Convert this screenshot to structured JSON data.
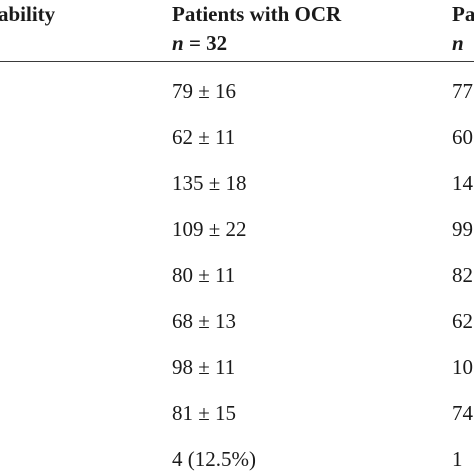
{
  "header": {
    "col_variable_fragment": "ability",
    "col_ocr_title": "Patients with OCR",
    "col_ocr_n_symbol": "n",
    "col_ocr_n_value": " = 32",
    "col_other_title_fragment": "Pa",
    "col_other_n_fragment": "n"
  },
  "rows": [
    {
      "ocr": "79 ± 16",
      "other": "77"
    },
    {
      "ocr": "62 ± 11",
      "other": "60"
    },
    {
      "ocr": "135 ± 18",
      "other": "14"
    },
    {
      "ocr": "109 ± 22",
      "other": "99"
    },
    {
      "ocr": "80 ± 11",
      "other": "82"
    },
    {
      "ocr": "68 ± 13",
      "other": "62"
    },
    {
      "ocr": "98 ± 11",
      "other": "10"
    },
    {
      "ocr": "81 ± 15",
      "other": "74"
    },
    {
      "ocr": "4 (12.5%)",
      "other": "1"
    }
  ]
}
